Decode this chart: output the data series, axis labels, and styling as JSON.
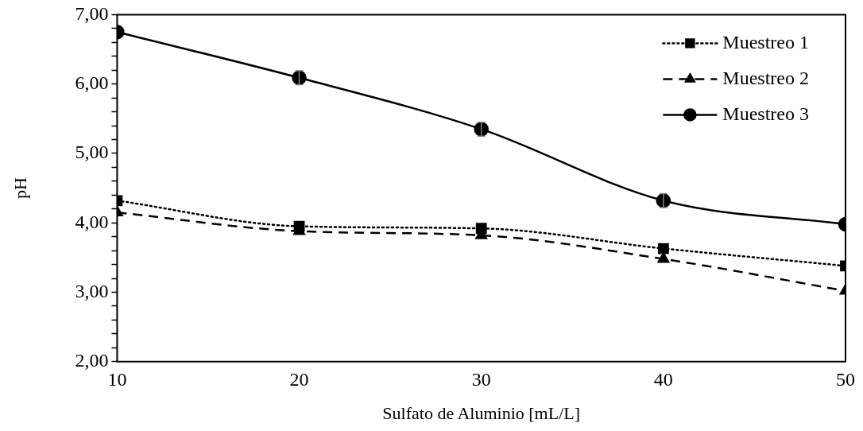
{
  "chart_data": {
    "type": "line",
    "xlabel": "Sulfato de Aluminio [mL/L]",
    "ylabel": "pH",
    "x": [
      10,
      20,
      30,
      40,
      50
    ],
    "xlim": [
      10,
      50
    ],
    "xticks": [
      10,
      20,
      30,
      40,
      50
    ],
    "ylim": [
      2,
      7
    ],
    "yticks": [
      {
        "value": 2,
        "label": "2,00"
      },
      {
        "value": 2.2,
        "label": null
      },
      {
        "value": 2.4,
        "label": null
      },
      {
        "value": 2.6,
        "label": null
      },
      {
        "value": 2.8,
        "label": null
      },
      {
        "value": 3,
        "label": "3,00"
      },
      {
        "value": 3.2,
        "label": null
      },
      {
        "value": 3.4,
        "label": null
      },
      {
        "value": 3.6,
        "label": null
      },
      {
        "value": 3.8,
        "label": null
      },
      {
        "value": 4,
        "label": "4,00"
      },
      {
        "value": 4.2,
        "label": null
      },
      {
        "value": 4.4,
        "label": null
      },
      {
        "value": 4.6,
        "label": null
      },
      {
        "value": 4.8,
        "label": null
      },
      {
        "value": 5,
        "label": "5,00"
      },
      {
        "value": 5.2,
        "label": null
      },
      {
        "value": 5.4,
        "label": null
      },
      {
        "value": 5.6,
        "label": null
      },
      {
        "value": 5.8,
        "label": null
      },
      {
        "value": 6,
        "label": "6,00"
      },
      {
        "value": 6.2,
        "label": null
      },
      {
        "value": 6.4,
        "label": null
      },
      {
        "value": 6.6,
        "label": null
      },
      {
        "value": 6.8,
        "label": null
      },
      {
        "value": 7,
        "label": "7,00"
      }
    ],
    "grid": false,
    "legend": "top right",
    "series": [
      {
        "name": "Muestreo 1",
        "color": "#000000",
        "marker": "square",
        "line_style": "dotted",
        "values": [
          4.32,
          3.95,
          3.92,
          3.63,
          3.38
        ]
      },
      {
        "name": "Muestreo 2",
        "color": "#000000",
        "marker": "triangle",
        "line_style": "dashed",
        "values": [
          4.15,
          3.88,
          3.82,
          3.48,
          3.02
        ]
      },
      {
        "name": "Muestreo 3",
        "color": "#000000",
        "marker": "circle",
        "line_style": "solid",
        "values": [
          6.75,
          6.09,
          5.35,
          4.32,
          3.98
        ],
        "errors": [
          null,
          0.1,
          0.1,
          0.1,
          null
        ]
      }
    ]
  }
}
